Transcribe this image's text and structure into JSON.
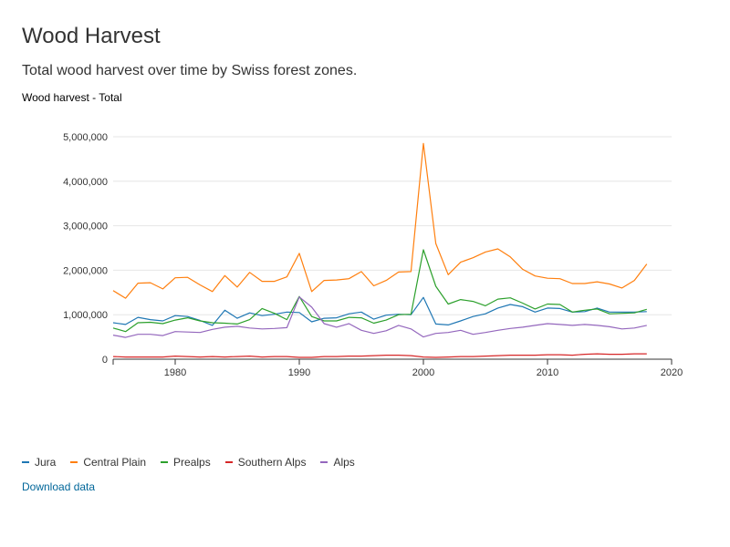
{
  "page": {
    "title": "Wood Harvest",
    "subtitle": "Total wood harvest over time by Swiss forest zones.",
    "chart_heading": "Wood harvest - Total",
    "download_label": "Download data"
  },
  "chart_data": {
    "type": "line",
    "title": "Wood harvest - Total",
    "xlabel": "",
    "ylabel": "",
    "xlim": [
      1975,
      2020
    ],
    "ylim": [
      0,
      5000000
    ],
    "x_ticks": [
      1980,
      1990,
      2000,
      2010,
      2020
    ],
    "x_tick_labels": [
      "1980",
      "1990",
      "2000",
      "2010",
      "2020"
    ],
    "y_ticks": [
      0,
      1000000,
      2000000,
      3000000,
      4000000,
      5000000
    ],
    "y_tick_labels": [
      "0",
      "1,000,000",
      "2,000,000",
      "3,000,000",
      "4,000,000",
      "5,000,000"
    ],
    "grid": true,
    "legend_position": "bottom-left",
    "x": [
      1975,
      1976,
      1977,
      1978,
      1979,
      1980,
      1981,
      1982,
      1983,
      1984,
      1985,
      1986,
      1987,
      1988,
      1989,
      1990,
      1991,
      1992,
      1993,
      1994,
      1995,
      1996,
      1997,
      1998,
      1999,
      2000,
      2001,
      2002,
      2003,
      2004,
      2005,
      2006,
      2007,
      2008,
      2009,
      2010,
      2011,
      2012,
      2013,
      2014,
      2015,
      2016,
      2017,
      2018
    ],
    "series": [
      {
        "name": "Jura",
        "color": "#1f77b4",
        "values": [
          820000,
          780000,
          940000,
          890000,
          860000,
          980000,
          960000,
          870000,
          760000,
          1100000,
          920000,
          1040000,
          980000,
          1010000,
          1060000,
          1050000,
          840000,
          920000,
          930000,
          1020000,
          1060000,
          900000,
          990000,
          1010000,
          1000000,
          1390000,
          790000,
          770000,
          860000,
          960000,
          1020000,
          1150000,
          1230000,
          1180000,
          1060000,
          1150000,
          1140000,
          1060000,
          1070000,
          1150000,
          1060000,
          1060000,
          1060000,
          1070000
        ]
      },
      {
        "name": "Central Plain",
        "color": "#ff7f0e",
        "values": [
          1540000,
          1370000,
          1710000,
          1720000,
          1580000,
          1830000,
          1840000,
          1670000,
          1520000,
          1880000,
          1620000,
          1950000,
          1750000,
          1750000,
          1850000,
          2380000,
          1520000,
          1770000,
          1780000,
          1810000,
          1970000,
          1650000,
          1770000,
          1960000,
          1970000,
          4850000,
          2600000,
          1900000,
          2180000,
          2280000,
          2410000,
          2480000,
          2300000,
          2020000,
          1870000,
          1820000,
          1810000,
          1700000,
          1700000,
          1740000,
          1690000,
          1600000,
          1770000,
          2140000
        ]
      },
      {
        "name": "Prealps",
        "color": "#2ca02c",
        "values": [
          700000,
          620000,
          820000,
          830000,
          800000,
          880000,
          930000,
          860000,
          820000,
          810000,
          790000,
          890000,
          1140000,
          1030000,
          890000,
          1410000,
          960000,
          860000,
          860000,
          940000,
          930000,
          810000,
          880000,
          1000000,
          1010000,
          2460000,
          1640000,
          1240000,
          1340000,
          1300000,
          1200000,
          1350000,
          1380000,
          1260000,
          1130000,
          1240000,
          1230000,
          1060000,
          1100000,
          1130000,
          1020000,
          1030000,
          1040000,
          1120000
        ]
      },
      {
        "name": "Southern Alps",
        "color": "#d62728",
        "values": [
          60000,
          50000,
          50000,
          50000,
          50000,
          70000,
          60000,
          50000,
          60000,
          50000,
          60000,
          70000,
          50000,
          60000,
          60000,
          40000,
          40000,
          60000,
          60000,
          70000,
          70000,
          80000,
          90000,
          90000,
          80000,
          50000,
          40000,
          50000,
          60000,
          60000,
          70000,
          80000,
          90000,
          90000,
          90000,
          100000,
          100000,
          90000,
          110000,
          120000,
          110000,
          110000,
          120000,
          120000
        ]
      },
      {
        "name": "Alps",
        "color": "#9467bd",
        "values": [
          540000,
          490000,
          560000,
          560000,
          530000,
          620000,
          610000,
          600000,
          670000,
          720000,
          740000,
          700000,
          680000,
          690000,
          710000,
          1400000,
          1170000,
          800000,
          720000,
          800000,
          650000,
          580000,
          640000,
          760000,
          680000,
          500000,
          580000,
          600000,
          650000,
          560000,
          600000,
          650000,
          690000,
          720000,
          760000,
          800000,
          780000,
          760000,
          780000,
          760000,
          730000,
          680000,
          700000,
          760000
        ]
      }
    ]
  }
}
